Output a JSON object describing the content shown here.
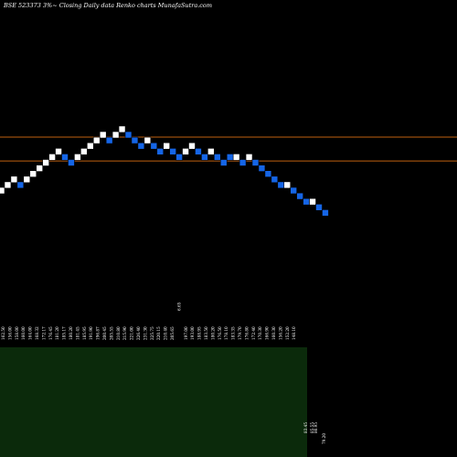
{
  "chart_data": {
    "type": "renko",
    "title": "BSE 523373 3%~ Closing Daily data Renko charts MunafaSutra.com",
    "colors": {
      "up": "#ffffff",
      "down": "#1565e6",
      "reference_line": "#c06010",
      "volume_fill": "#0b2a0b",
      "background": "#000000",
      "text": "#ffffff"
    },
    "bricks": [
      {
        "dir": "up",
        "level": 0
      },
      {
        "dir": "up",
        "level": 1
      },
      {
        "dir": "up",
        "level": 2
      },
      {
        "dir": "down",
        "level": 1
      },
      {
        "dir": "up",
        "level": 2
      },
      {
        "dir": "up",
        "level": 3
      },
      {
        "dir": "up",
        "level": 4
      },
      {
        "dir": "up",
        "level": 5
      },
      {
        "dir": "up",
        "level": 6
      },
      {
        "dir": "up",
        "level": 7
      },
      {
        "dir": "down",
        "level": 6
      },
      {
        "dir": "down",
        "level": 5
      },
      {
        "dir": "up",
        "level": 6
      },
      {
        "dir": "up",
        "level": 7
      },
      {
        "dir": "up",
        "level": 8
      },
      {
        "dir": "up",
        "level": 9
      },
      {
        "dir": "up",
        "level": 10
      },
      {
        "dir": "down",
        "level": 9
      },
      {
        "dir": "up",
        "level": 10
      },
      {
        "dir": "up",
        "level": 11
      },
      {
        "dir": "down",
        "level": 10
      },
      {
        "dir": "down",
        "level": 9
      },
      {
        "dir": "down",
        "level": 8
      },
      {
        "dir": "up",
        "level": 9
      },
      {
        "dir": "down",
        "level": 8
      },
      {
        "dir": "down",
        "level": 7
      },
      {
        "dir": "up",
        "level": 8
      },
      {
        "dir": "down",
        "level": 7
      },
      {
        "dir": "down",
        "level": 6
      },
      {
        "dir": "up",
        "level": 7
      },
      {
        "dir": "up",
        "level": 8
      },
      {
        "dir": "down",
        "level": 7
      },
      {
        "dir": "down",
        "level": 6
      },
      {
        "dir": "up",
        "level": 7
      },
      {
        "dir": "down",
        "level": 6
      },
      {
        "dir": "down",
        "level": 5
      },
      {
        "dir": "down",
        "level": 6
      },
      {
        "dir": "up",
        "level": 6
      },
      {
        "dir": "down",
        "level": 5
      },
      {
        "dir": "up",
        "level": 6
      },
      {
        "dir": "down",
        "level": 5
      },
      {
        "dir": "down",
        "level": 4
      },
      {
        "dir": "down",
        "level": 3
      },
      {
        "dir": "down",
        "level": 2
      },
      {
        "dir": "down",
        "level": 1
      },
      {
        "dir": "up",
        "level": 1
      },
      {
        "dir": "down",
        "level": 0
      },
      {
        "dir": "down",
        "level": -1
      },
      {
        "dir": "down",
        "level": -2
      },
      {
        "dir": "up",
        "level": -2
      },
      {
        "dir": "down",
        "level": -3
      },
      {
        "dir": "down",
        "level": -4
      }
    ],
    "reference_lines": [
      {
        "name": "upper",
        "level": 9.6
      },
      {
        "name": "lower",
        "level": 5.3
      }
    ],
    "x_labels": [
      "162.50",
      "156.00",
      "158.00",
      "160.00",
      "164.00",
      "168.32",
      "172.17",
      "176.45",
      "181.20",
      "185.17",
      "180.20",
      "181.45",
      "185.95",
      "191.90",
      "196.87",
      "200.45",
      "205.55",
      "210.80",
      "215.90",
      "221.00",
      "226.40",
      "231.30",
      "225.75",
      "220.15",
      "210.40",
      "205.65",
      "6.65",
      "197.00",
      "193.00",
      "188.95",
      "183.50",
      "180.20",
      "176.50",
      "178.10",
      "183.35",
      "179.70",
      "176.80",
      "172.40",
      "170.30",
      "166.90",
      "160.30",
      "156.20",
      "152.20",
      "148.10"
    ],
    "volume_notes": [
      "83.45",
      "85.55",
      "80.95",
      "79.20"
    ],
    "top_marker": "6.65"
  }
}
